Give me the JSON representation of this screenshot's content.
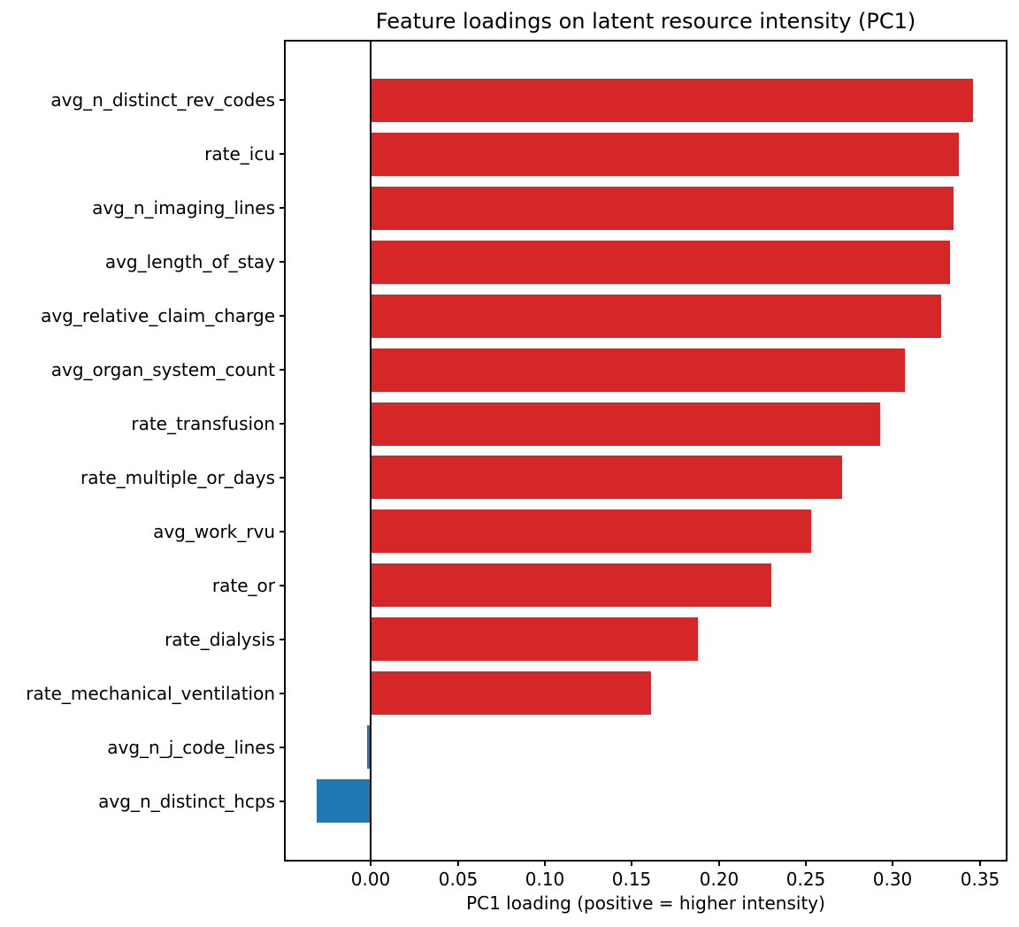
{
  "figure": {
    "background": "#ffffff",
    "text_color": "#000000"
  },
  "chart_data": {
    "type": "bar",
    "orientation": "horizontal",
    "title": "Feature loadings on latent resource intensity (PC1)",
    "xlabel": "PC1 loading (positive = higher intensity)",
    "ylabel": "",
    "categories": [
      "avg_n_distinct_rev_codes",
      "rate_icu",
      "avg_n_imaging_lines",
      "avg_length_of_stay",
      "avg_relative_claim_charge",
      "avg_organ_system_count",
      "rate_transfusion",
      "rate_multiple_or_days",
      "avg_work_rvu",
      "rate_or",
      "rate_dialysis",
      "rate_mechanical_ventilation",
      "avg_n_j_code_lines",
      "avg_n_distinct_hcps"
    ],
    "values": [
      0.346,
      0.338,
      0.335,
      0.333,
      0.328,
      0.307,
      0.293,
      0.271,
      0.253,
      0.23,
      0.188,
      0.161,
      -0.002,
      -0.031
    ],
    "bar_colors": [
      "#d62728",
      "#d62728",
      "#d62728",
      "#d62728",
      "#d62728",
      "#d62728",
      "#d62728",
      "#d62728",
      "#d62728",
      "#d62728",
      "#d62728",
      "#d62728",
      "#1f77b4",
      "#1f77b4"
    ],
    "positive_color": "#d62728",
    "negative_color": "#1f77b4",
    "xlim": [
      -0.049,
      0.365
    ],
    "xticks": [
      0.0,
      0.05,
      0.1,
      0.15,
      0.2,
      0.25,
      0.3,
      0.35
    ],
    "xtick_labels": [
      "0.00",
      "0.05",
      "0.10",
      "0.15",
      "0.20",
      "0.25",
      "0.30",
      "0.35"
    ],
    "grid": false,
    "zero_line": true,
    "legend": null,
    "bar_width_fraction": 0.8
  }
}
